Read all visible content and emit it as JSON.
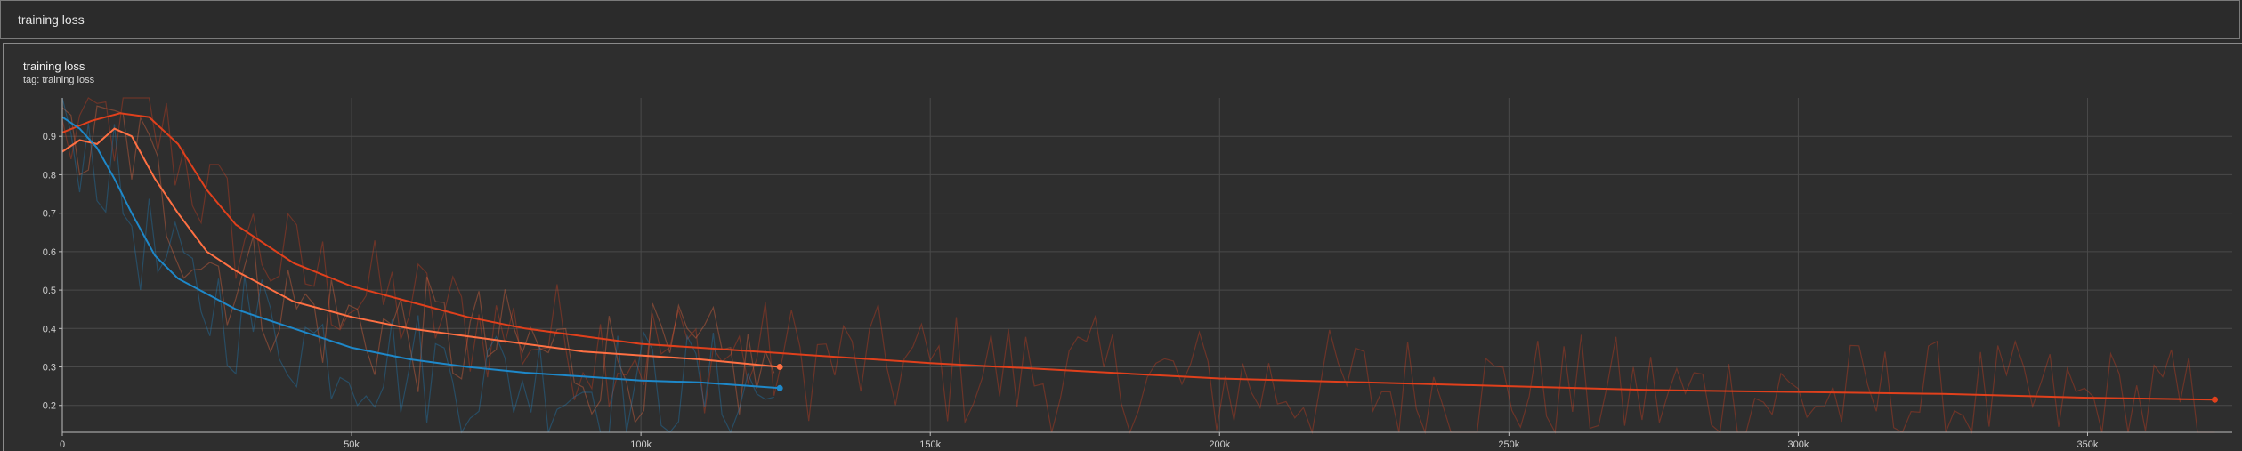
{
  "header": {
    "title": "training loss"
  },
  "card": {
    "title": "training loss",
    "tag": "tag: training loss"
  },
  "colors": {
    "grid": "#4a4a4a",
    "axis": "#bdbdbd",
    "tick_text": "#cfcfcf",
    "series_red": "#e0401c",
    "series_orange": "#ff7043",
    "series_blue": "#1e88c9"
  },
  "chart_data": {
    "type": "line",
    "title": "training loss",
    "xlabel": "",
    "ylabel": "",
    "xlim": [
      0,
      375000
    ],
    "ylim": [
      0.13,
      1.0
    ],
    "grid": true,
    "x_ticks": [
      0,
      50000,
      100000,
      150000,
      200000,
      250000,
      300000,
      350000
    ],
    "x_tick_labels": [
      "0",
      "50k",
      "100k",
      "150k",
      "200k",
      "250k",
      "300k",
      "350k"
    ],
    "y_ticks": [
      0.2,
      0.3,
      0.4,
      0.5,
      0.6,
      0.7,
      0.8,
      0.9
    ],
    "y_tick_labels": [
      "0.2",
      "0.3",
      "0.4",
      "0.5",
      "0.6",
      "0.7",
      "0.8",
      "0.9"
    ],
    "series": [
      {
        "color": "#e0401c",
        "x": [
          0,
          5000,
          10000,
          15000,
          20000,
          25000,
          30000,
          40000,
          50000,
          60000,
          70000,
          80000,
          90000,
          100000,
          110000,
          120000,
          130000,
          150000,
          175000,
          200000,
          225000,
          250000,
          275000,
          300000,
          325000,
          350000,
          372000
        ],
        "y": [
          0.91,
          0.94,
          0.96,
          0.95,
          0.88,
          0.76,
          0.67,
          0.57,
          0.51,
          0.47,
          0.43,
          0.4,
          0.38,
          0.36,
          0.35,
          0.34,
          0.33,
          0.31,
          0.29,
          0.27,
          0.26,
          0.25,
          0.24,
          0.235,
          0.23,
          0.22,
          0.215
        ]
      },
      {
        "color": "#ff7043",
        "x": [
          0,
          3000,
          6000,
          9000,
          12000,
          16000,
          20000,
          25000,
          30000,
          40000,
          50000,
          60000,
          70000,
          80000,
          90000,
          100000,
          110000,
          124000
        ],
        "y": [
          0.86,
          0.89,
          0.88,
          0.92,
          0.9,
          0.79,
          0.7,
          0.6,
          0.55,
          0.47,
          0.43,
          0.4,
          0.38,
          0.36,
          0.34,
          0.33,
          0.32,
          0.3
        ]
      },
      {
        "color": "#1e88c9",
        "x": [
          0,
          3000,
          6000,
          9000,
          12000,
          16000,
          20000,
          25000,
          30000,
          40000,
          50000,
          60000,
          70000,
          80000,
          90000,
          100000,
          110000,
          124000
        ],
        "y": [
          0.95,
          0.92,
          0.87,
          0.79,
          0.7,
          0.59,
          0.53,
          0.49,
          0.45,
          0.4,
          0.35,
          0.32,
          0.3,
          0.285,
          0.275,
          0.265,
          0.26,
          0.245
        ]
      }
    ]
  }
}
